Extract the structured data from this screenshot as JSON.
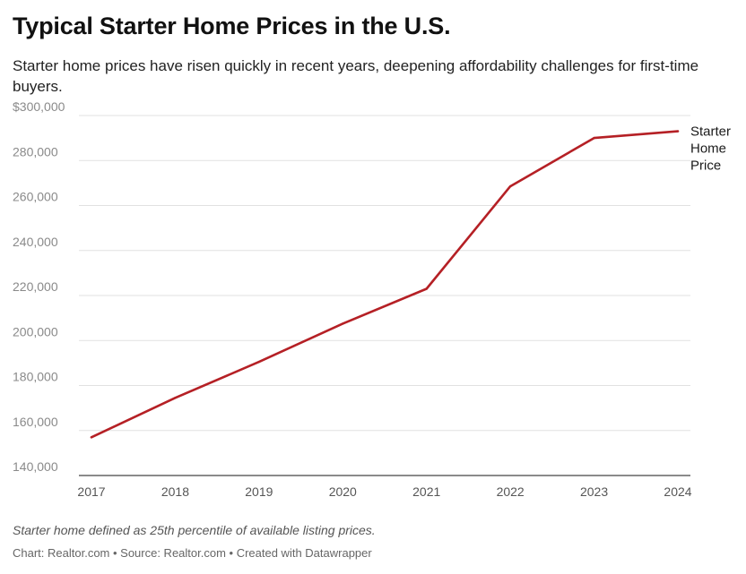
{
  "header": {
    "title": "Typical Starter Home Prices in the U.S.",
    "subtitle": "Starter home prices have risen quickly in recent years, deepening affordability challenges for first-time buyers."
  },
  "footer": {
    "note": "Starter home defined as 25th percentile of available listing prices.",
    "credits": "Chart: Realtor.com • Source: Realtor.com • Created with Datawrapper"
  },
  "chart_data": {
    "type": "line",
    "title": "Typical Starter Home Prices in the U.S.",
    "subtitle": "Starter home prices have risen quickly in recent years, deepening affordability challenges for first-time buyers.",
    "xlabel": "",
    "ylabel": "",
    "x": [
      "2017",
      "2018",
      "2019",
      "2020",
      "2021",
      "2022",
      "2023",
      "2024"
    ],
    "series": [
      {
        "name": "Starter Home Price",
        "label_lines": [
          "Starter",
          "Home",
          "Price"
        ],
        "values": [
          157000,
          174500,
          190500,
          207500,
          223000,
          268500,
          290000,
          293000
        ],
        "color": "#b52025"
      }
    ],
    "ylim": [
      140000,
      300000
    ],
    "yticks": [
      140000,
      160000,
      180000,
      200000,
      220000,
      240000,
      260000,
      280000,
      300000
    ],
    "ytick_labels": [
      "140,000",
      "160,000",
      "180,000",
      "200,000",
      "220,000",
      "240,000",
      "260,000",
      "280,000",
      "$300,000"
    ],
    "grid": true,
    "legend": "direct label at line end (right)"
  }
}
